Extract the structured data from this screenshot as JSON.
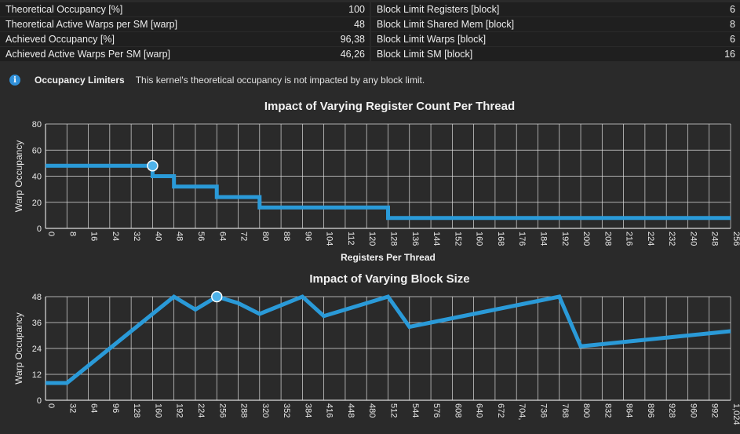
{
  "metrics": {
    "left": [
      {
        "label": "Theoretical Occupancy [%]",
        "value": "100"
      },
      {
        "label": "Theoretical Active Warps per SM [warp]",
        "value": "48"
      },
      {
        "label": "Achieved Occupancy [%]",
        "value": "96,38"
      },
      {
        "label": "Achieved Active Warps Per SM [warp]",
        "value": "46,26"
      }
    ],
    "right": [
      {
        "label": "Block Limit Registers [block]",
        "value": "6"
      },
      {
        "label": "Block Limit Shared Mem [block]",
        "value": "8"
      },
      {
        "label": "Block Limit Warps [block]",
        "value": "6"
      },
      {
        "label": "Block Limit SM [block]",
        "value": "16"
      }
    ]
  },
  "limiters": {
    "icon": "info-icon",
    "title": "Occupancy Limiters",
    "text": "This kernel's theoretical occupancy is not impacted by any block limit."
  },
  "colors": {
    "line": "#2a9ad8",
    "marker": "#4fb3ea",
    "background": "#2a2a2a"
  },
  "chart_data": [
    {
      "type": "line",
      "title": "Impact of Varying Register Count Per Thread",
      "xlabel": "Registers Per Thread",
      "ylabel": "Warp Occupancy",
      "xlim": [
        0,
        256
      ],
      "ylim": [
        0,
        80
      ],
      "yticks": [
        0,
        20,
        40,
        60,
        80
      ],
      "xticks": [
        0,
        8,
        16,
        24,
        32,
        40,
        48,
        56,
        64,
        72,
        80,
        88,
        96,
        104,
        112,
        120,
        128,
        136,
        144,
        152,
        160,
        168,
        176,
        184,
        192,
        200,
        208,
        216,
        224,
        232,
        240,
        248,
        256
      ],
      "xtick_labels": [
        "0",
        "8",
        "16",
        "24",
        "32",
        "40",
        "48",
        "56",
        "64",
        "72",
        "80",
        "88",
        "96",
        "104",
        "112",
        "120",
        "128",
        "136",
        "144",
        "152",
        "160",
        "168",
        "176",
        "184",
        "192",
        "200",
        "208",
        "216",
        "224",
        "232",
        "240",
        "248",
        "256"
      ],
      "x": [
        0,
        40,
        40,
        48,
        48,
        64,
        64,
        80,
        80,
        128,
        128,
        256
      ],
      "y": [
        48,
        48,
        40,
        40,
        32,
        32,
        24,
        24,
        16,
        16,
        8,
        8
      ],
      "current_point": {
        "x": 40,
        "y": 48
      }
    },
    {
      "type": "line",
      "title": "Impact of Varying Block Size",
      "xlabel": "",
      "ylabel": "Warp Occupancy",
      "xlim": [
        0,
        1024
      ],
      "ylim": [
        0,
        48
      ],
      "yticks": [
        0,
        12,
        24,
        36,
        48
      ],
      "xticks": [
        0,
        32,
        64,
        96,
        128,
        160,
        192,
        224,
        256,
        288,
        320,
        352,
        384,
        416,
        448,
        480,
        512,
        544,
        576,
        608,
        640,
        672,
        704,
        736,
        768,
        800,
        832,
        864,
        896,
        928,
        960,
        992,
        1024
      ],
      "xtick_labels": [
        "0",
        "32",
        "64",
        "96",
        "128",
        "160",
        "192",
        "224",
        "256",
        "288",
        "320",
        "352",
        "384",
        "416",
        "448",
        "480",
        "512",
        "544",
        "576",
        "608",
        "640",
        "672",
        "704,",
        "736",
        "768",
        "800",
        "832",
        "864",
        "896",
        "928",
        "960",
        "992",
        "1,024"
      ],
      "x": [
        0,
        32,
        64,
        96,
        128,
        160,
        192,
        224,
        256,
        288,
        320,
        352,
        384,
        416,
        448,
        480,
        512,
        544,
        576,
        608,
        640,
        672,
        704,
        736,
        768,
        800,
        832,
        864,
        896,
        928,
        960,
        992,
        1024
      ],
      "y": [
        8,
        8,
        16,
        24,
        32,
        40,
        48,
        42,
        48,
        45,
        40,
        44,
        48,
        39,
        42,
        45,
        48,
        34,
        36,
        38,
        40,
        42,
        44,
        46,
        48,
        25,
        26,
        27,
        28,
        29,
        30,
        31,
        32
      ],
      "current_point": {
        "x": 256,
        "y": 48
      }
    }
  ]
}
